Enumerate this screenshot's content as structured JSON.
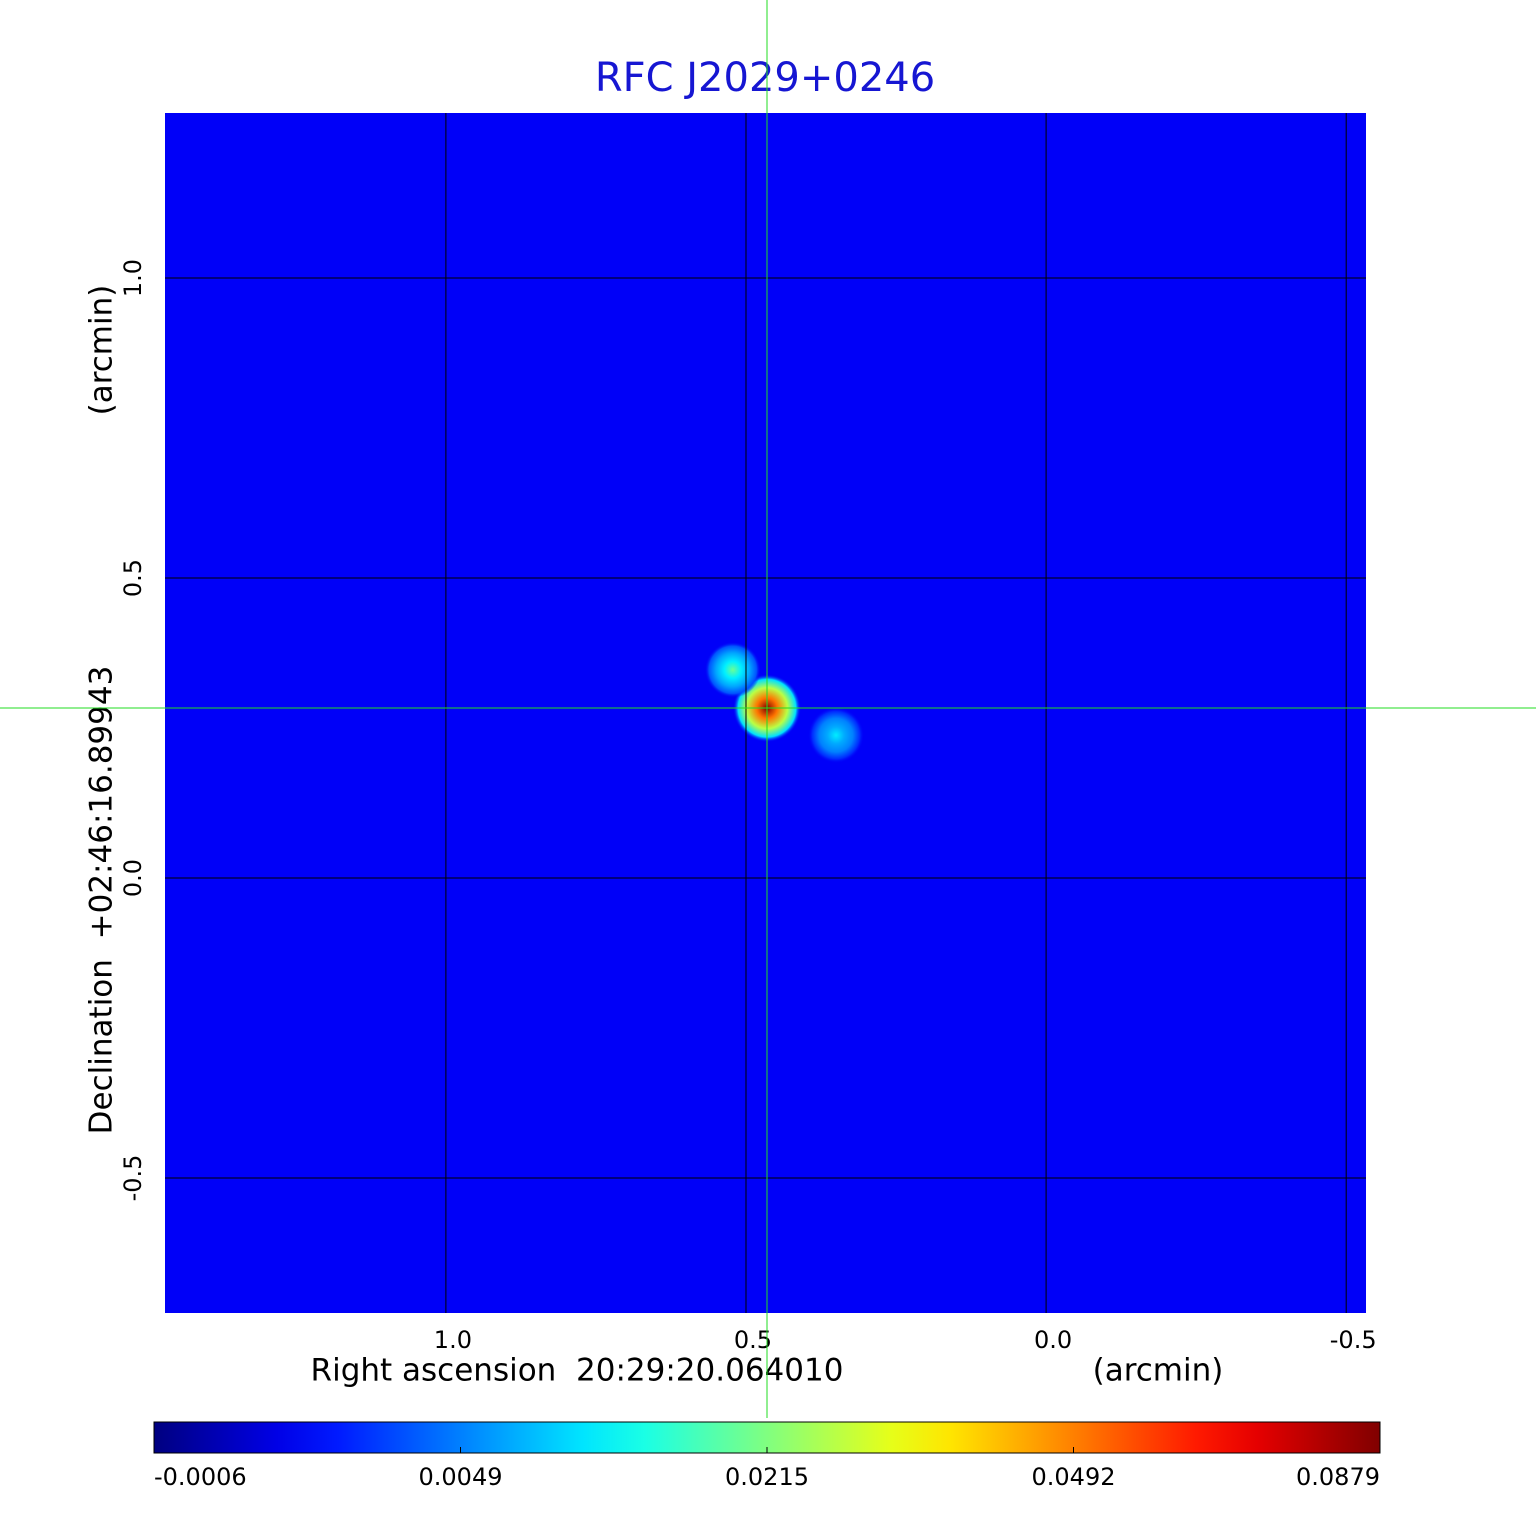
{
  "chart_data": {
    "type": "image",
    "title": "RFC J2029+0246",
    "x_label": "Right ascension  20:29:20.064010",
    "x_unit": "(arcmin)",
    "y_label": "Declination  +02:46:16.89943",
    "y_unit": "(arcmin)",
    "xlim": [
      1.468,
      -0.533
    ],
    "ylim": [
      -0.725,
      1.275
    ],
    "xticks": [
      {
        "value": 1,
        "label": "1.0"
      },
      0.5,
      {
        "value": 0,
        "label": "0.0"
      },
      -0.5
    ],
    "yticks": [
      -0.5,
      {
        "value": 0,
        "label": "0.0"
      },
      0.5,
      {
        "value": 1,
        "label": "1.0"
      }
    ],
    "grid": true,
    "colormap": "jet",
    "background": 0.002,
    "sources": [
      {
        "x": 0.465,
        "y": 0.283,
        "value": 0.0879
      },
      {
        "x": 0.522,
        "y": 0.347,
        "value": 0.02
      },
      {
        "x": 0.35,
        "y": 0.238,
        "value": 0.012
      }
    ],
    "colorbar_ticks": [
      -0.0006,
      0.0049,
      0.0215,
      0.0492,
      0.0879
    ]
  }
}
